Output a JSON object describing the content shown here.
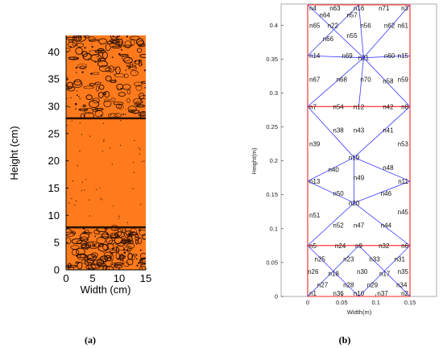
{
  "chart_data": [
    {
      "type": "heatmap",
      "caption": "(a)",
      "xlabel": "Width (cm)",
      "ylabel": "Height (cm)",
      "xlim": [
        0,
        15
      ],
      "ylim": [
        0,
        43
      ],
      "xticks": [
        0,
        5,
        10,
        15
      ],
      "yticks": [
        0,
        5,
        10,
        15,
        20,
        25,
        30,
        35,
        40
      ],
      "fill_color": "#ff7a1c",
      "contour_color": "#2a0f00",
      "bands": [
        {
          "name": "bottom",
          "ymin": 0,
          "ymax": 7.8,
          "texture": "dense"
        },
        {
          "name": "middle",
          "ymin": 7.8,
          "ymax": 27.8,
          "texture": "sparse"
        },
        {
          "name": "top",
          "ymin": 27.8,
          "ymax": 43,
          "texture": "dense"
        }
      ]
    },
    {
      "type": "diagram",
      "caption": "(b)",
      "xlabel": "Width(m)",
      "ylabel": "Height(m)",
      "xlim": [
        0,
        0.15
      ],
      "ylim": [
        0,
        0.43
      ],
      "xticks": [
        0,
        0.05,
        0.1,
        0.15
      ],
      "xtick_labels": [
        "0",
        "0.05",
        "0.1",
        "0.15"
      ],
      "yticks": [
        0,
        0.05,
        0.1,
        0.15,
        0.2,
        0.25,
        0.3,
        0.35,
        0.4
      ],
      "ytick_labels": [
        "0",
        "0.05",
        "0.1",
        "0.15",
        "0.2",
        "0.25",
        "0.3",
        "0.35",
        "0.4"
      ],
      "red_color": "#ff2020",
      "blue_color": "#3a3aff",
      "nodes": [
        {
          "id": "n1",
          "x": 0,
          "y": 0
        },
        {
          "id": "n2",
          "x": 0.15,
          "y": 0
        },
        {
          "id": "n3",
          "x": 0.15,
          "y": 0.43
        },
        {
          "id": "n4",
          "x": 0,
          "y": 0.43
        },
        {
          "id": "n5",
          "x": 0,
          "y": 0.075
        },
        {
          "id": "n6",
          "x": 0.15,
          "y": 0.075
        },
        {
          "id": "n7",
          "x": 0,
          "y": 0.28
        },
        {
          "id": "n8",
          "x": 0.15,
          "y": 0.28
        },
        {
          "id": "n9",
          "x": 0.075,
          "y": 0.075
        },
        {
          "id": "n10",
          "x": 0.075,
          "y": 0
        },
        {
          "id": "n11",
          "x": 0.15,
          "y": 0.17
        },
        {
          "id": "n12",
          "x": 0.075,
          "y": 0.28
        },
        {
          "id": "n13",
          "x": 0,
          "y": 0.17
        },
        {
          "id": "n14",
          "x": 0,
          "y": 0.355
        },
        {
          "id": "n15",
          "x": 0.15,
          "y": 0.355
        },
        {
          "id": "n16",
          "x": 0.075,
          "y": 0.43
        },
        {
          "id": "n17",
          "x": 0.113,
          "y": 0.034
        },
        {
          "id": "n18",
          "x": 0.038,
          "y": 0.034
        },
        {
          "id": "n19",
          "x": 0.068,
          "y": 0.205
        },
        {
          "id": "n20",
          "x": 0.068,
          "y": 0.138
        },
        {
          "id": "n21",
          "x": 0.082,
          "y": 0.352
        },
        {
          "id": "n22",
          "x": 0.037,
          "y": 0.4
        },
        {
          "id": "n23",
          "x": 0.06,
          "y": 0.055
        },
        {
          "id": "n24",
          "x": 0.048,
          "y": 0.075
        },
        {
          "id": "n25",
          "x": 0.018,
          "y": 0.055
        },
        {
          "id": "n26",
          "x": 0.008,
          "y": 0.037
        },
        {
          "id": "n27",
          "x": 0.022,
          "y": 0.017
        },
        {
          "id": "n28",
          "x": 0.06,
          "y": 0.017
        },
        {
          "id": "n29",
          "x": 0.095,
          "y": 0.017
        },
        {
          "id": "n30",
          "x": 0.08,
          "y": 0.037
        },
        {
          "id": "n31",
          "x": 0.135,
          "y": 0.055
        },
        {
          "id": "n32",
          "x": 0.112,
          "y": 0.075
        },
        {
          "id": "n33",
          "x": 0.098,
          "y": 0.055
        },
        {
          "id": "n34",
          "x": 0.138,
          "y": 0.017
        },
        {
          "id": "n35",
          "x": 0.15,
          "y": 0.037
        },
        {
          "id": "n36",
          "x": 0.045,
          "y": 0
        },
        {
          "id": "n37",
          "x": 0.11,
          "y": 0
        },
        {
          "id": "n38",
          "x": 0.045,
          "y": 0.245
        },
        {
          "id": "n39",
          "x": 0,
          "y": 0.225
        },
        {
          "id": "n40",
          "x": 0.038,
          "y": 0.187
        },
        {
          "id": "n41",
          "x": 0.118,
          "y": 0.245
        },
        {
          "id": "n42",
          "x": 0.118,
          "y": 0.28
        },
        {
          "id": "n43",
          "x": 0.075,
          "y": 0.245
        },
        {
          "id": "n44",
          "x": 0.115,
          "y": 0.105
        },
        {
          "id": "n45",
          "x": 0.15,
          "y": 0.125
        },
        {
          "id": "n46",
          "x": 0.115,
          "y": 0.152
        },
        {
          "id": "n47",
          "x": 0.075,
          "y": 0.105
        },
        {
          "id": "n48",
          "x": 0.118,
          "y": 0.19
        },
        {
          "id": "n49",
          "x": 0.075,
          "y": 0.175
        },
        {
          "id": "n50",
          "x": 0.045,
          "y": 0.152
        },
        {
          "id": "n51",
          "x": 0,
          "y": 0.12
        },
        {
          "id": "n52",
          "x": 0.045,
          "y": 0.105
        },
        {
          "id": "n53",
          "x": 0.15,
          "y": 0.225
        },
        {
          "id": "n54",
          "x": 0.045,
          "y": 0.28
        },
        {
          "id": "n55",
          "x": 0.065,
          "y": 0.385
        },
        {
          "id": "n56",
          "x": 0.085,
          "y": 0.4
        },
        {
          "id": "n57",
          "x": 0.065,
          "y": 0.415
        },
        {
          "id": "n58",
          "x": 0.118,
          "y": 0.318
        },
        {
          "id": "n59",
          "x": 0.15,
          "y": 0.32
        },
        {
          "id": "n60",
          "x": 0.12,
          "y": 0.355
        },
        {
          "id": "n61",
          "x": 0.15,
          "y": 0.4
        },
        {
          "id": "n62",
          "x": 0.12,
          "y": 0.4
        },
        {
          "id": "n63",
          "x": 0.04,
          "y": 0.43
        },
        {
          "id": "n64",
          "x": 0.025,
          "y": 0.415
        },
        {
          "id": "n65",
          "x": 0,
          "y": 0.4
        },
        {
          "id": "n66",
          "x": 0.03,
          "y": 0.38
        },
        {
          "id": "n67",
          "x": 0,
          "y": 0.32
        },
        {
          "id": "n68",
          "x": 0.05,
          "y": 0.32
        },
        {
          "id": "n69",
          "x": 0.058,
          "y": 0.355
        },
        {
          "id": "n70",
          "x": 0.085,
          "y": 0.32
        },
        {
          "id": "n71",
          "x": 0.112,
          "y": 0.43
        }
      ],
      "red_lines": [
        [
          "n1",
          "n2"
        ],
        [
          "n2",
          "n3"
        ],
        [
          "n3",
          "n4"
        ],
        [
          "n4",
          "n1"
        ],
        [
          "n5",
          "n6"
        ],
        [
          "n7",
          "n8"
        ]
      ],
      "blue_lines": [
        [
          "n1",
          "n9"
        ],
        [
          "n2",
          "n9"
        ],
        [
          "n5",
          "n10"
        ],
        [
          "n6",
          "n10"
        ],
        [
          "n5",
          "n20"
        ],
        [
          "n6",
          "n20"
        ],
        [
          "n13",
          "n20"
        ],
        [
          "n11",
          "n20"
        ],
        [
          "n20",
          "n19"
        ],
        [
          "n13",
          "n19"
        ],
        [
          "n11",
          "n19"
        ],
        [
          "n7",
          "n19"
        ],
        [
          "n8",
          "n19"
        ],
        [
          "n7",
          "n21"
        ],
        [
          "n8",
          "n21"
        ],
        [
          "n12",
          "n21"
        ],
        [
          "n14",
          "n21"
        ],
        [
          "n15",
          "n21"
        ],
        [
          "n4",
          "n21"
        ],
        [
          "n3",
          "n21"
        ],
        [
          "n16",
          "n21"
        ],
        [
          "n14",
          "n16"
        ]
      ]
    }
  ]
}
